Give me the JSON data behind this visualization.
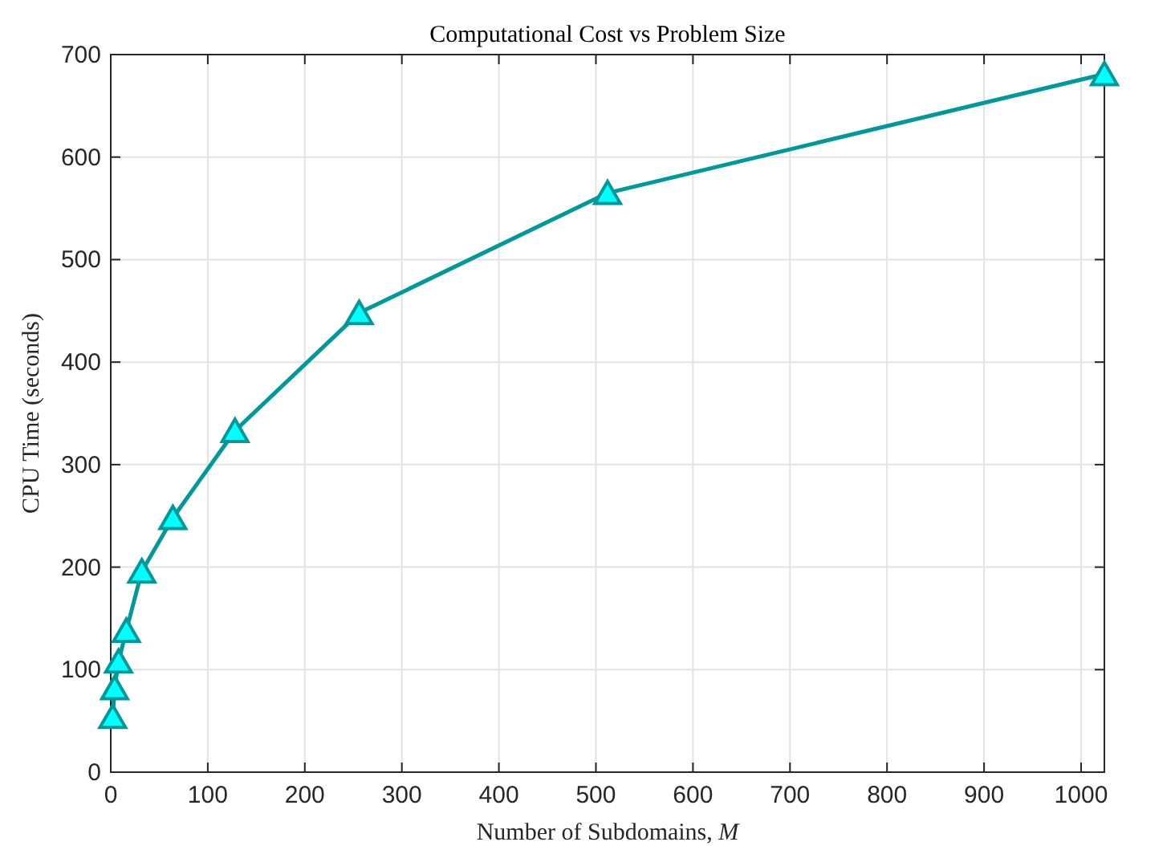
{
  "chart_data": {
    "type": "line",
    "title": "Computational Cost vs Problem Size",
    "xlabel": "Number of Subdomains, M",
    "ylabel": "CPU Time (seconds)",
    "x": [
      2,
      4,
      8,
      16,
      32,
      64,
      128,
      256,
      512,
      1024
    ],
    "series": [
      {
        "color": "#009999",
        "values": [
          54,
          82,
          108,
          138,
          196,
          248,
          333,
          448,
          565,
          681
        ]
      }
    ],
    "xlim": [
      0,
      1024
    ],
    "xticks": [
      0,
      100,
      200,
      300,
      400,
      500,
      600,
      700,
      800,
      900,
      1000
    ],
    "ylim": [
      0,
      700
    ],
    "yticks": [
      0,
      100,
      200,
      300,
      400,
      500,
      600,
      700
    ],
    "grid": true,
    "marker": "triangle",
    "line_style": "solid"
  }
}
